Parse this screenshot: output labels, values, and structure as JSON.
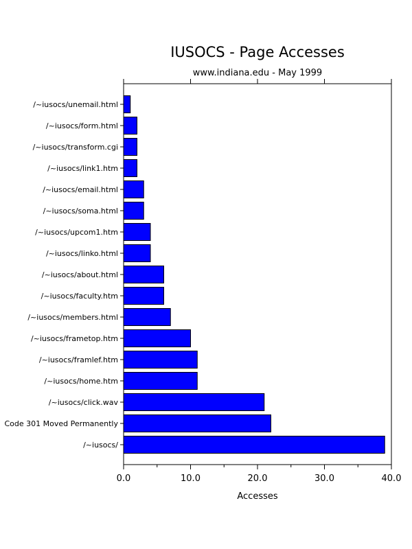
{
  "chart_data": {
    "type": "bar",
    "orientation": "horizontal",
    "title": "IUSOCS - Page Accesses",
    "subtitle": "www.indiana.edu - May 1999",
    "xlabel": "Accesses",
    "ylabel": "",
    "xlim": [
      0,
      40
    ],
    "xticks": [
      "0.0",
      "10.0",
      "20.0",
      "30.0",
      "40.0"
    ],
    "categories": [
      "/~iusocs/unemail.html",
      "/~iusocs/form.html",
      "/~iusocs/transform.cgi",
      "/~iusocs/link1.htm",
      "/~iusocs/email.html",
      "/~iusocs/soma.html",
      "/~iusocs/upcom1.htm",
      "/~iusocs/linko.html",
      "/~iusocs/about.html",
      "/~iusocs/faculty.htm",
      "/~iusocs/members.html",
      "/~iusocs/frametop.htm",
      "/~iusocs/framlef.htm",
      "/~iusocs/home.htm",
      "/~iusocs/click.wav",
      "Code 301 Moved Permanently",
      "/~iusocs/"
    ],
    "values": [
      1,
      2,
      2,
      2,
      3,
      3,
      4,
      4,
      6,
      6,
      7,
      10,
      11,
      11,
      21,
      22,
      39
    ],
    "bar_color": "#0000ff",
    "grid": false
  }
}
